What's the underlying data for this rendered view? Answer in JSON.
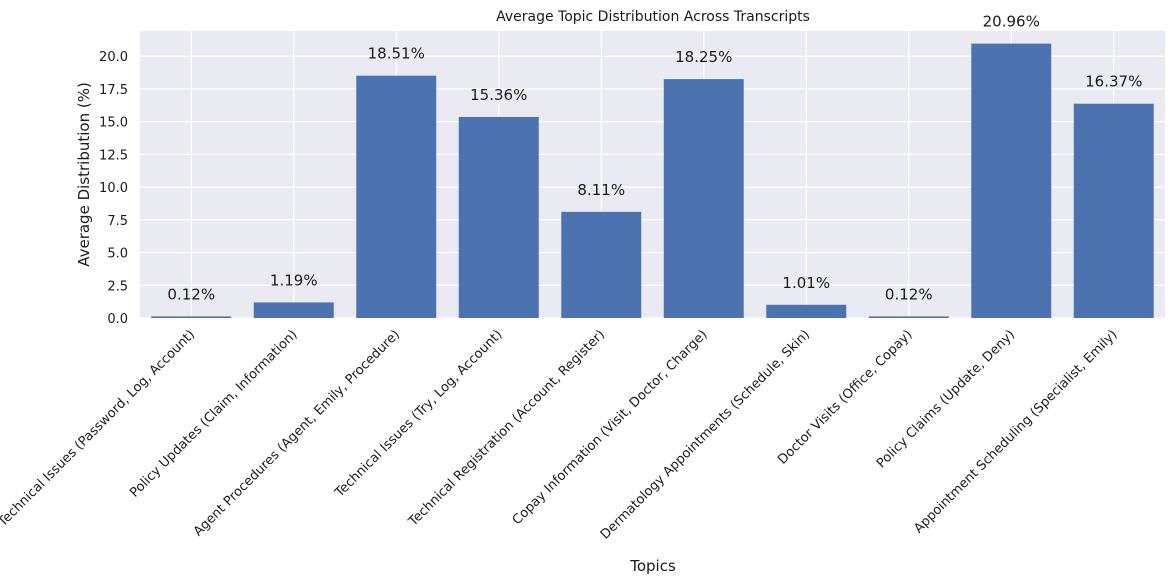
{
  "chart_data": {
    "type": "bar",
    "title": "Average Topic Distribution Across Transcripts",
    "xlabel": "Topics",
    "ylabel": "Average Distribution (%)",
    "ylim": [
      0,
      22
    ],
    "yticks": [
      "0.0",
      "2.5",
      "5.0",
      "7.5",
      "10.0",
      "12.5",
      "15.0",
      "17.5",
      "20.0"
    ],
    "grid": true,
    "categories": [
      "Technical Issues (Password, Log, Account)",
      "Policy Updates (Claim, Information)",
      "Agent Procedures (Agent, Emily, Procedure)",
      "Technical Issues (Try, Log, Account)",
      "Technical Registration (Account, Register)",
      "Copay Information (Visit, Doctor, Charge)",
      "Dermatology Appointments (Schedule, Skin)",
      "Doctor Visits (Office, Copay)",
      "Policy Claims (Update, Deny)",
      "Appointment Scheduling (Specialist, Emily)"
    ],
    "values": [
      0.12,
      1.19,
      18.51,
      15.36,
      8.11,
      18.25,
      1.01,
      0.12,
      20.96,
      16.37
    ],
    "data_labels": [
      "0.12%",
      "1.19%",
      "18.51%",
      "15.36%",
      "8.11%",
      "18.25%",
      "1.01%",
      "0.12%",
      "20.96%",
      "16.37%"
    ],
    "colors": {
      "bar": "#4c72b0",
      "plot_background": "#eaeaf2",
      "grid": "#ffffff"
    }
  }
}
